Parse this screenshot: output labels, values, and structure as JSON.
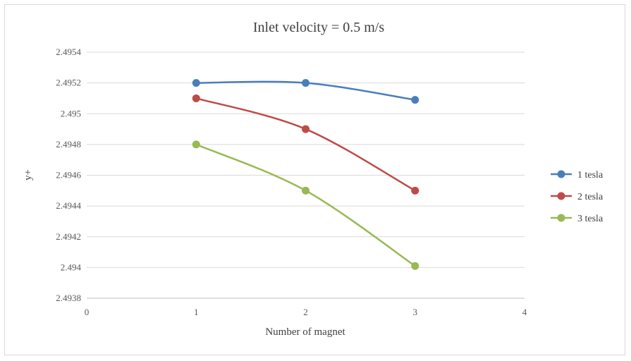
{
  "chart_data": {
    "type": "line",
    "title": "Inlet velocity = 0.5 m/s",
    "xlabel": "Number of magnet",
    "ylabel": "y+",
    "xlim": [
      0,
      4
    ],
    "ylim": [
      2.4938,
      2.4954
    ],
    "x_ticks": [
      "0",
      "1",
      "2",
      "3",
      "4"
    ],
    "y_ticks": [
      "2.4938",
      "2.494",
      "2.4942",
      "2.4944",
      "2.4946",
      "2.4948",
      "2.495",
      "2.4952",
      "2.4954"
    ],
    "grid": true,
    "smooth": true,
    "legend_position": "right",
    "x": [
      1,
      2,
      3
    ],
    "series": [
      {
        "name": "1 tesla",
        "color": "#4a7ebb",
        "values": [
          2.4952,
          2.4952,
          2.49509
        ]
      },
      {
        "name": "2 tesla",
        "color": "#be4b48",
        "values": [
          2.4951,
          2.4949,
          2.4945
        ]
      },
      {
        "name": "3 tesla",
        "color": "#98b954",
        "values": [
          2.4948,
          2.4945,
          2.49401
        ]
      }
    ]
  }
}
